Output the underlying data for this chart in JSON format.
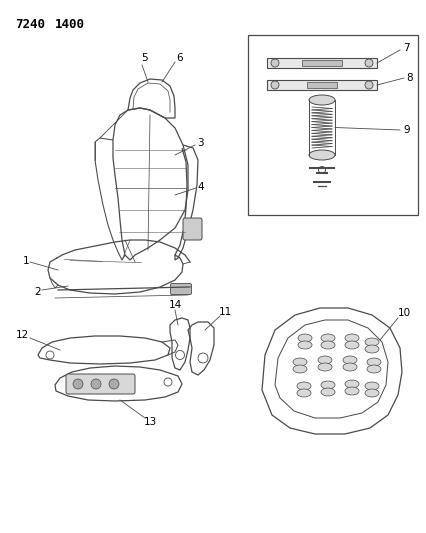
{
  "title_part1": "7240",
  "title_part2": "1400",
  "background_color": "#ffffff",
  "line_color": "#4a4a4a",
  "label_color": "#000000",
  "figsize": [
    4.27,
    5.33
  ],
  "dpi": 100
}
